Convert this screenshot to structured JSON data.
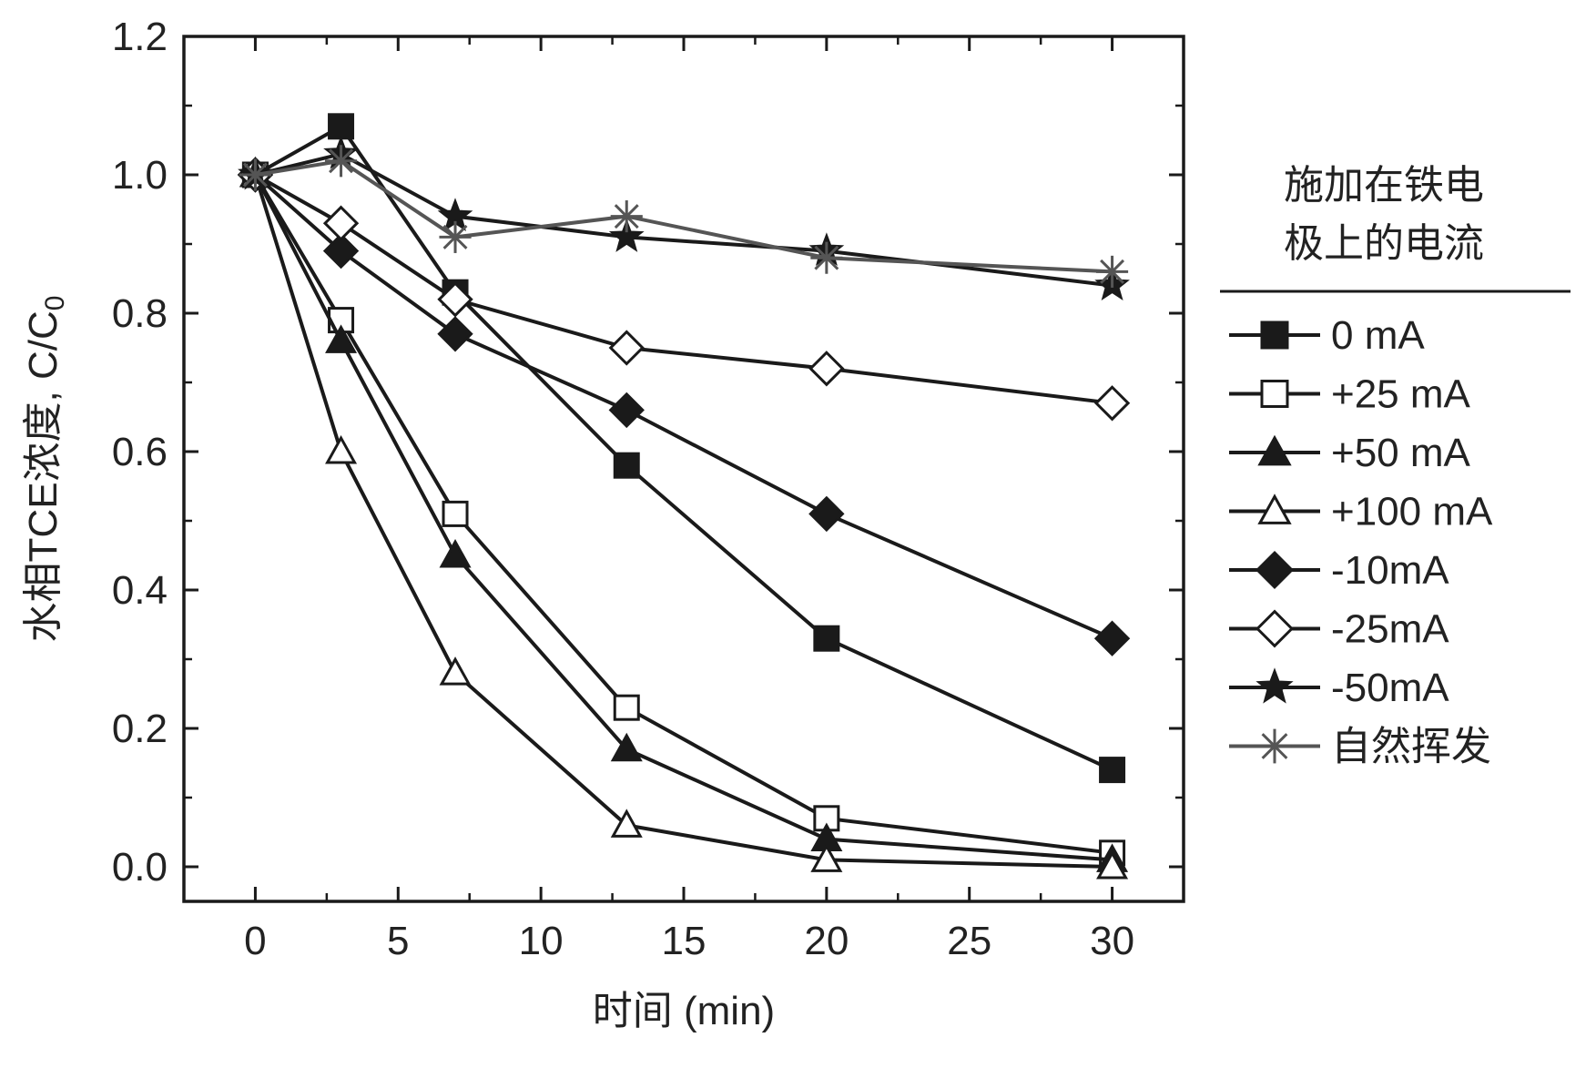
{
  "chart_data": {
    "type": "line",
    "xlabel": "时间 (min)",
    "ylabel_main": "水相TCE浓度, C/C",
    "ylabel_sub": "0",
    "xlim": [
      -2.5,
      32.5
    ],
    "ylim": [
      -0.05,
      1.2
    ],
    "xticks": [
      0,
      5,
      10,
      15,
      20,
      25,
      30
    ],
    "xtick_labels": [
      "0",
      "5",
      "10",
      "15",
      "20",
      "25",
      "30"
    ],
    "yticks": [
      0.0,
      0.2,
      0.4,
      0.6,
      0.8,
      1.0,
      1.2
    ],
    "ytick_labels": [
      "0.0",
      "0.2",
      "0.4",
      "0.6",
      "0.8",
      "1.0",
      "1.2"
    ],
    "x": [
      0,
      3,
      7,
      13,
      20,
      30
    ],
    "legend_title_line1": "施加在铁电",
    "legend_title_line2": "极上的电流",
    "legend_position": "right",
    "series": [
      {
        "name": "0 mA",
        "marker": "square-filled",
        "color": "#1a1a1a",
        "values": [
          1.0,
          1.07,
          0.83,
          0.58,
          0.33,
          0.14
        ]
      },
      {
        "name": "+25 mA",
        "marker": "square-open",
        "color": "#1a1a1a",
        "values": [
          1.0,
          0.79,
          0.51,
          0.23,
          0.07,
          0.02
        ]
      },
      {
        "name": "+50 mA",
        "marker": "triangle-filled",
        "color": "#1a1a1a",
        "values": [
          1.0,
          0.76,
          0.45,
          0.17,
          0.04,
          0.01
        ]
      },
      {
        "name": "+100 mA",
        "marker": "triangle-open",
        "color": "#1a1a1a",
        "values": [
          1.0,
          0.6,
          0.28,
          0.06,
          0.01,
          0.0
        ]
      },
      {
        "name": "-10mA",
        "marker": "diamond-filled",
        "color": "#1a1a1a",
        "values": [
          1.0,
          0.89,
          0.77,
          0.66,
          0.51,
          0.33
        ]
      },
      {
        "name": "-25mA",
        "marker": "diamond-open",
        "color": "#1a1a1a",
        "values": [
          1.0,
          0.93,
          0.82,
          0.75,
          0.72,
          0.67
        ]
      },
      {
        "name": "-50mA",
        "marker": "star-filled",
        "color": "#1a1a1a",
        "values": [
          1.0,
          1.03,
          0.94,
          0.91,
          0.89,
          0.84
        ]
      },
      {
        "name": "自然挥发",
        "marker": "asterisk",
        "color": "#555555",
        "values": [
          1.0,
          1.02,
          0.91,
          0.94,
          0.88,
          0.86
        ]
      }
    ]
  }
}
